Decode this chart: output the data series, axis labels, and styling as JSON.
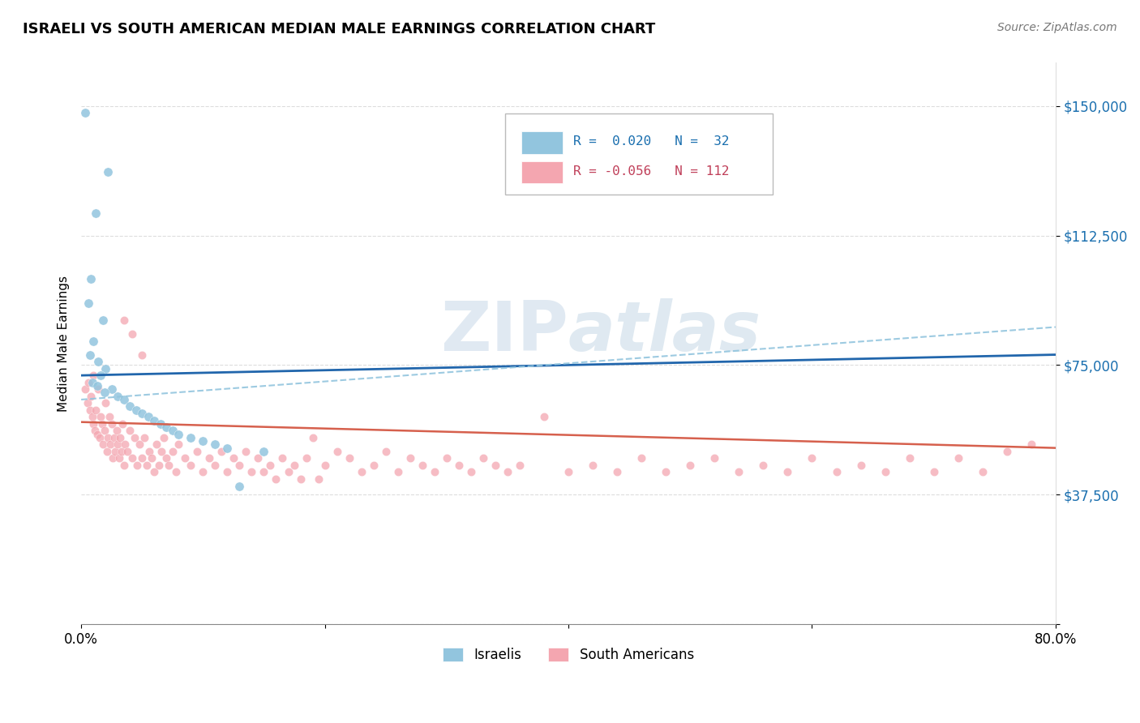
{
  "title": "ISRAELI VS SOUTH AMERICAN MEDIAN MALE EARNINGS CORRELATION CHART",
  "source": "Source: ZipAtlas.com",
  "ylabel": "Median Male Earnings",
  "xlim": [
    0.0,
    0.8
  ],
  "ylim": [
    0,
    162500
  ],
  "yticks": [
    0,
    37500,
    75000,
    112500,
    150000
  ],
  "ytick_labels": [
    "",
    "$37,500",
    "$75,000",
    "$112,500",
    "$150,000"
  ],
  "xticks": [
    0.0,
    0.2,
    0.4,
    0.6,
    0.8
  ],
  "xtick_labels": [
    "0.0%",
    "",
    "",
    "",
    "80.0%"
  ],
  "watermark": "ZIPatlas",
  "israeli_color": "#92c5de",
  "south_american_color": "#f4a6b0",
  "israeli_line_color": "#2166ac",
  "sa_line_solid_color": "#d6604d",
  "sa_line_dashed_color": "#92c5de",
  "background_color": "#ffffff",
  "israeli_points": [
    [
      0.003,
      148000
    ],
    [
      0.022,
      131000
    ],
    [
      0.012,
      119000
    ],
    [
      0.008,
      100000
    ],
    [
      0.006,
      93000
    ],
    [
      0.018,
      88000
    ],
    [
      0.01,
      82000
    ],
    [
      0.007,
      78000
    ],
    [
      0.014,
      76000
    ],
    [
      0.02,
      74000
    ],
    [
      0.016,
      72000
    ],
    [
      0.009,
      70000
    ],
    [
      0.013,
      69000
    ],
    [
      0.025,
      68000
    ],
    [
      0.019,
      67000
    ],
    [
      0.03,
      66000
    ],
    [
      0.035,
      65000
    ],
    [
      0.04,
      63000
    ],
    [
      0.045,
      62000
    ],
    [
      0.05,
      61000
    ],
    [
      0.055,
      60000
    ],
    [
      0.06,
      59000
    ],
    [
      0.065,
      58000
    ],
    [
      0.07,
      57000
    ],
    [
      0.075,
      56000
    ],
    [
      0.08,
      55000
    ],
    [
      0.09,
      54000
    ],
    [
      0.1,
      53000
    ],
    [
      0.11,
      52000
    ],
    [
      0.12,
      51000
    ],
    [
      0.13,
      40000
    ],
    [
      0.15,
      50000
    ]
  ],
  "south_american_points": [
    [
      0.003,
      68000
    ],
    [
      0.005,
      64000
    ],
    [
      0.006,
      70000
    ],
    [
      0.007,
      62000
    ],
    [
      0.008,
      66000
    ],
    [
      0.009,
      60000
    ],
    [
      0.01,
      58000
    ],
    [
      0.01,
      72000
    ],
    [
      0.011,
      56000
    ],
    [
      0.012,
      62000
    ],
    [
      0.013,
      55000
    ],
    [
      0.014,
      68000
    ],
    [
      0.015,
      54000
    ],
    [
      0.016,
      60000
    ],
    [
      0.017,
      58000
    ],
    [
      0.018,
      52000
    ],
    [
      0.019,
      56000
    ],
    [
      0.02,
      64000
    ],
    [
      0.021,
      50000
    ],
    [
      0.022,
      54000
    ],
    [
      0.023,
      60000
    ],
    [
      0.024,
      52000
    ],
    [
      0.025,
      58000
    ],
    [
      0.026,
      48000
    ],
    [
      0.027,
      54000
    ],
    [
      0.028,
      50000
    ],
    [
      0.029,
      56000
    ],
    [
      0.03,
      52000
    ],
    [
      0.031,
      48000
    ],
    [
      0.032,
      54000
    ],
    [
      0.033,
      50000
    ],
    [
      0.034,
      58000
    ],
    [
      0.035,
      46000
    ],
    [
      0.036,
      52000
    ],
    [
      0.038,
      50000
    ],
    [
      0.04,
      56000
    ],
    [
      0.042,
      48000
    ],
    [
      0.044,
      54000
    ],
    [
      0.046,
      46000
    ],
    [
      0.048,
      52000
    ],
    [
      0.05,
      48000
    ],
    [
      0.052,
      54000
    ],
    [
      0.054,
      46000
    ],
    [
      0.056,
      50000
    ],
    [
      0.058,
      48000
    ],
    [
      0.06,
      44000
    ],
    [
      0.062,
      52000
    ],
    [
      0.064,
      46000
    ],
    [
      0.066,
      50000
    ],
    [
      0.068,
      54000
    ],
    [
      0.07,
      48000
    ],
    [
      0.072,
      46000
    ],
    [
      0.075,
      50000
    ],
    [
      0.078,
      44000
    ],
    [
      0.08,
      52000
    ],
    [
      0.085,
      48000
    ],
    [
      0.09,
      46000
    ],
    [
      0.095,
      50000
    ],
    [
      0.1,
      44000
    ],
    [
      0.105,
      48000
    ],
    [
      0.11,
      46000
    ],
    [
      0.115,
      50000
    ],
    [
      0.12,
      44000
    ],
    [
      0.125,
      48000
    ],
    [
      0.13,
      46000
    ],
    [
      0.135,
      50000
    ],
    [
      0.14,
      44000
    ],
    [
      0.145,
      48000
    ],
    [
      0.15,
      44000
    ],
    [
      0.155,
      46000
    ],
    [
      0.16,
      42000
    ],
    [
      0.165,
      48000
    ],
    [
      0.17,
      44000
    ],
    [
      0.175,
      46000
    ],
    [
      0.18,
      42000
    ],
    [
      0.185,
      48000
    ],
    [
      0.19,
      54000
    ],
    [
      0.195,
      42000
    ],
    [
      0.2,
      46000
    ],
    [
      0.21,
      50000
    ],
    [
      0.22,
      48000
    ],
    [
      0.23,
      44000
    ],
    [
      0.24,
      46000
    ],
    [
      0.25,
      50000
    ],
    [
      0.26,
      44000
    ],
    [
      0.27,
      48000
    ],
    [
      0.28,
      46000
    ],
    [
      0.29,
      44000
    ],
    [
      0.3,
      48000
    ],
    [
      0.31,
      46000
    ],
    [
      0.32,
      44000
    ],
    [
      0.33,
      48000
    ],
    [
      0.34,
      46000
    ],
    [
      0.35,
      44000
    ],
    [
      0.36,
      46000
    ],
    [
      0.38,
      60000
    ],
    [
      0.4,
      44000
    ],
    [
      0.42,
      46000
    ],
    [
      0.44,
      44000
    ],
    [
      0.46,
      48000
    ],
    [
      0.48,
      44000
    ],
    [
      0.5,
      46000
    ],
    [
      0.52,
      48000
    ],
    [
      0.54,
      44000
    ],
    [
      0.56,
      46000
    ],
    [
      0.58,
      44000
    ],
    [
      0.6,
      48000
    ],
    [
      0.62,
      44000
    ],
    [
      0.64,
      46000
    ],
    [
      0.66,
      44000
    ],
    [
      0.68,
      48000
    ],
    [
      0.7,
      44000
    ],
    [
      0.72,
      48000
    ],
    [
      0.74,
      44000
    ],
    [
      0.76,
      50000
    ],
    [
      0.78,
      52000
    ],
    [
      0.035,
      88000
    ],
    [
      0.042,
      84000
    ],
    [
      0.05,
      78000
    ]
  ],
  "isr_line": [
    [
      0.0,
      72000
    ],
    [
      0.8,
      78000
    ]
  ],
  "sa_dashed_line": [
    [
      0.0,
      65000
    ],
    [
      0.8,
      86000
    ]
  ],
  "sa_solid_line": [
    [
      0.0,
      58500
    ],
    [
      0.8,
      51000
    ]
  ]
}
